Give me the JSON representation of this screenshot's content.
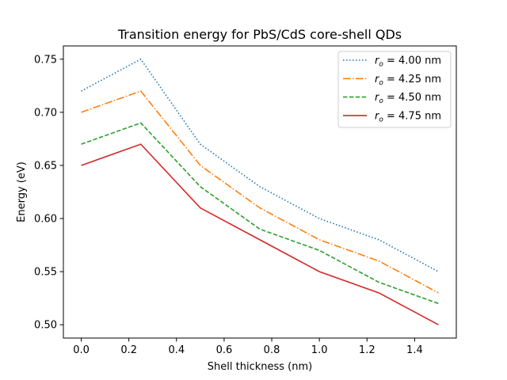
{
  "chart_data": {
    "type": "line",
    "title": "Transition energy for PbS/CdS core-shell QDs",
    "xlabel": "Shell thickness (nm)",
    "ylabel": "Energy (eV)",
    "xlim": [
      -0.075,
      1.575
    ],
    "ylim": [
      0.4875,
      0.7625
    ],
    "xticks": [
      0.0,
      0.2,
      0.4,
      0.6,
      0.8,
      1.0,
      1.2,
      1.4
    ],
    "xtick_labels": [
      "0.0",
      "0.2",
      "0.4",
      "0.6",
      "0.8",
      "1.0",
      "1.2",
      "1.4"
    ],
    "yticks": [
      0.5,
      0.55,
      0.6,
      0.65,
      0.7,
      0.75
    ],
    "ytick_labels": [
      "0.50",
      "0.55",
      "0.60",
      "0.65",
      "0.70",
      "0.75"
    ],
    "x": [
      0.0,
      0.25,
      0.5,
      0.75,
      1.0,
      1.25,
      1.5
    ],
    "legend_position": "top-right",
    "series": [
      {
        "name": "4.00 nm",
        "label_prefix": "r",
        "label_sub": "o",
        "color": "#1f77b4",
        "style": "dotted",
        "values": [
          0.72,
          0.75,
          0.67,
          0.63,
          0.6,
          0.58,
          0.55
        ]
      },
      {
        "name": "4.25 nm",
        "label_prefix": "r",
        "label_sub": "o",
        "color": "#ff7f0e",
        "style": "dashdot",
        "values": [
          0.7,
          0.72,
          0.65,
          0.61,
          0.58,
          0.56,
          0.53
        ]
      },
      {
        "name": "4.50 nm",
        "label_prefix": "r",
        "label_sub": "o",
        "color": "#2ca02c",
        "style": "dashed",
        "values": [
          0.67,
          0.69,
          0.63,
          0.59,
          0.57,
          0.54,
          0.52
        ]
      },
      {
        "name": "4.75 nm",
        "label_prefix": "r",
        "label_sub": "o",
        "color": "#d62728",
        "style": "solid",
        "values": [
          0.65,
          0.67,
          0.61,
          0.58,
          0.55,
          0.53,
          0.5
        ]
      }
    ]
  }
}
